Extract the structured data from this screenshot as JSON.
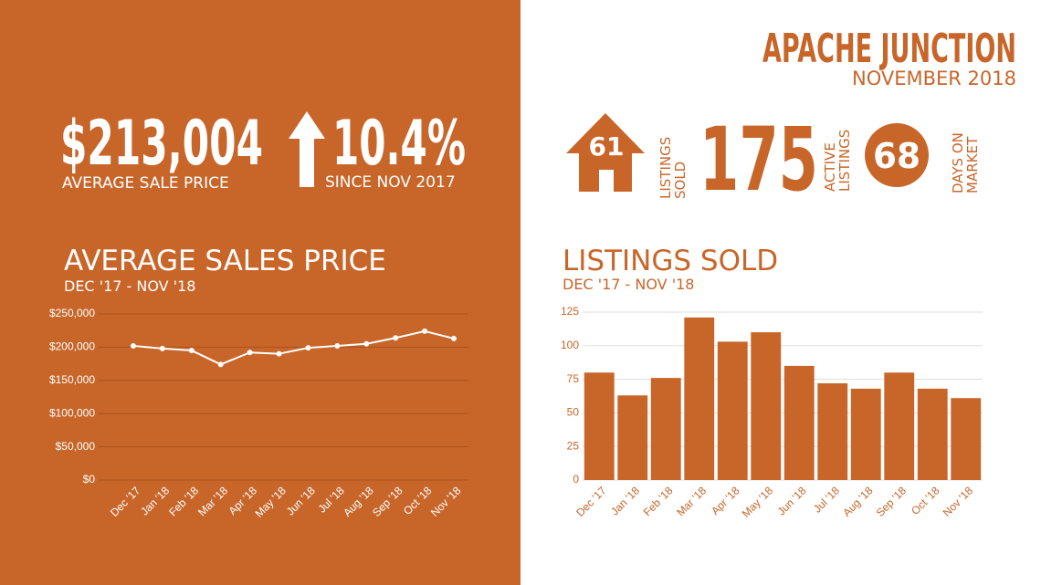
{
  "header": {
    "title": "APACHE JUNCTION",
    "subtitle": "NOVEMBER 2018"
  },
  "price_stat": {
    "value": "$213,004",
    "label": "AVERAGE  SALE PRICE"
  },
  "change_stat": {
    "value": "10.4%",
    "label": "SINCE NOV 2017"
  },
  "listings_sold_stat": {
    "value": "61",
    "label": [
      "LISTINGS",
      "SOLD"
    ]
  },
  "active_listings_stat": {
    "value": "175",
    "label": [
      "ACTIVE",
      "LISTINGS"
    ]
  },
  "days_on_market_stat": {
    "value": "68",
    "label": [
      "DAYS ON",
      "MARKET"
    ]
  },
  "chart_data": [
    {
      "type": "line",
      "title": "AVERAGE SALES PRICE",
      "subtitle": "DEC '17 - NOV '18",
      "categories": [
        "Dec '17",
        "Jan '18",
        "Feb '18",
        "Mar '18",
        "Apr '18",
        "May '18",
        "Jun '18",
        "Jul '18",
        "Aug '18",
        "Sep '18",
        "Oct '18",
        "Nov '18"
      ],
      "values": [
        202000,
        198000,
        195000,
        174000,
        192000,
        190000,
        199000,
        202000,
        205000,
        214000,
        224000,
        213000
      ],
      "color": "#ffffff",
      "grid": true,
      "ylim": [
        0,
        250000
      ],
      "yticks": [
        {
          "value": 0,
          "label": "$0"
        },
        {
          "value": 50000,
          "label": "$50,000"
        },
        {
          "value": 100000,
          "label": "$100,000"
        },
        {
          "value": 150000,
          "label": "$150,000"
        },
        {
          "value": 200000,
          "label": "$200,000"
        },
        {
          "value": 250000,
          "label": "$250,000"
        }
      ]
    },
    {
      "type": "bar",
      "title": "LISTINGS SOLD",
      "subtitle": "DEC '17 - NOV '18",
      "categories": [
        "Dec '17",
        "Jan '18",
        "Feb '18",
        "Mar '18",
        "Apr '18",
        "May '18",
        "Jun '18",
        "Jul '18",
        "Aug '18",
        "Sep '18",
        "Oct '18",
        "Nov '18"
      ],
      "values": [
        80,
        63,
        76,
        121,
        103,
        110,
        85,
        72,
        68,
        80,
        68,
        61
      ],
      "color": "#c8662a",
      "grid": true,
      "ylim": [
        0,
        125
      ],
      "yticks": [
        0,
        25,
        50,
        75,
        100,
        125
      ]
    }
  ]
}
